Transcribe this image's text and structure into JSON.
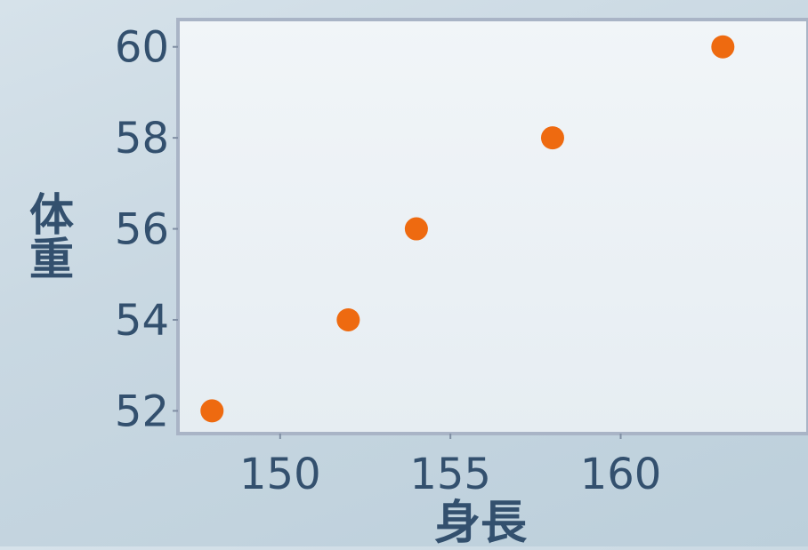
{
  "chart_data": {
    "type": "scatter",
    "title": "",
    "xlabel": "身長",
    "ylabel": "体重",
    "x_ticks": [
      150,
      155,
      160
    ],
    "y_ticks": [
      52,
      54,
      56,
      58,
      60
    ],
    "xlim": [
      147,
      165.5
    ],
    "ylim": [
      51.5,
      60.6
    ],
    "grid": false,
    "series": [
      {
        "points": [
          {
            "x": 148,
            "y": 52
          },
          {
            "x": 152,
            "y": 54
          },
          {
            "x": 154,
            "y": 56
          },
          {
            "x": 158,
            "y": 58
          },
          {
            "x": 163,
            "y": 60
          }
        ]
      }
    ],
    "colors": {
      "marker": "#ee6a10",
      "plot_background": "#eef3f7",
      "axis_text": "#33506e",
      "axis_line": "#a9b4c6"
    }
  }
}
